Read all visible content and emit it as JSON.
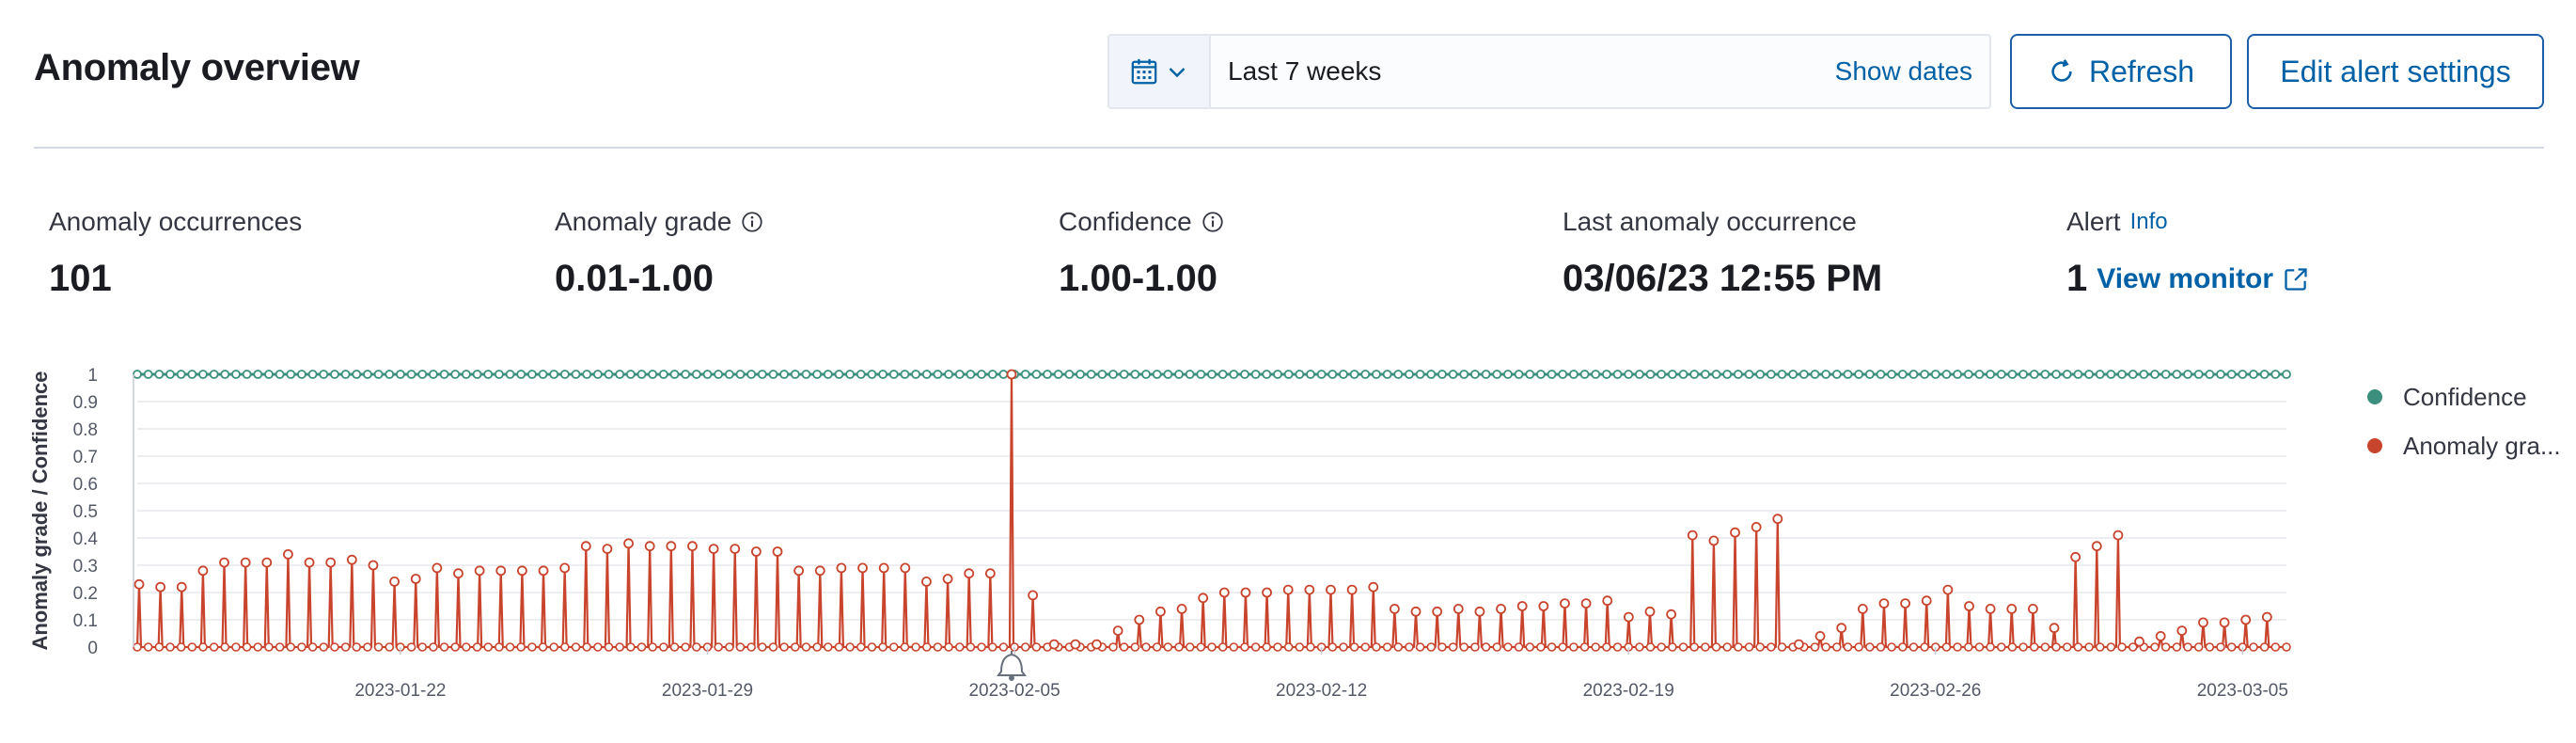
{
  "header": {
    "title": "Anomaly overview",
    "date_picker": {
      "range_label": "Last 7 weeks",
      "show_dates_label": "Show dates"
    },
    "refresh_label": "Refresh",
    "edit_alert_label": "Edit alert settings"
  },
  "stats": {
    "occurrences": {
      "label": "Anomaly occurrences",
      "value": "101"
    },
    "grade": {
      "label": "Anomaly grade",
      "value": "0.01-1.00"
    },
    "confidence": {
      "label": "Confidence",
      "value": "1.00-1.00"
    },
    "last": {
      "label": "Last anomaly occurrence",
      "value": "03/06/23 12:55 PM"
    },
    "alert": {
      "label": "Alert",
      "info_label": "Info",
      "value": "1",
      "link_label": "View monitor"
    }
  },
  "legend": [
    {
      "label": "Confidence",
      "color": "#3b8f7c"
    },
    {
      "label": "Anomaly gra...",
      "color": "#c9442d"
    }
  ],
  "colors": {
    "accent": "#0061a6",
    "confidence": "#3b8f7c",
    "anomaly": "#c9442d"
  },
  "chart_data": {
    "type": "line",
    "ylabel": "Anomaly grade / Confidence",
    "ylim": [
      0,
      1
    ],
    "yticks": [
      "0",
      "0.1",
      "0.2",
      "0.3",
      "0.4",
      "0.5",
      "0.6",
      "0.7",
      "0.8",
      "0.9",
      "1"
    ],
    "xlim": [
      "2023-01-16",
      "2023-03-06"
    ],
    "xticks": [
      "2023-01-22",
      "2023-01-29",
      "2023-02-05",
      "2023-02-12",
      "2023-02-19",
      "2023-02-26",
      "2023-03-05"
    ],
    "grid": true,
    "legend_position": "right",
    "series": [
      {
        "name": "Confidence",
        "color": "#3b8f7c",
        "constant_value": 1.0
      },
      {
        "name": "Anomaly grade",
        "color": "#c9442d",
        "peaks": [
          0.23,
          0.22,
          0.22,
          0.28,
          0.31,
          0.31,
          0.31,
          0.34,
          0.31,
          0.31,
          0.32,
          0.3,
          0.24,
          0.25,
          0.29,
          0.27,
          0.28,
          0.28,
          0.28,
          0.28,
          0.29,
          0.37,
          0.36,
          0.38,
          0.37,
          0.37,
          0.37,
          0.36,
          0.36,
          0.35,
          0.35,
          0.28,
          0.28,
          0.29,
          0.29,
          0.29,
          0.29,
          0.24,
          0.25,
          0.27,
          0.27,
          1.0,
          0.19,
          0.01,
          0.01,
          0.01,
          0.06,
          0.1,
          0.13,
          0.14,
          0.18,
          0.2,
          0.2,
          0.2,
          0.21,
          0.21,
          0.21,
          0.21,
          0.22,
          0.14,
          0.13,
          0.13,
          0.14,
          0.13,
          0.14,
          0.15,
          0.15,
          0.16,
          0.16,
          0.17,
          0.11,
          0.13,
          0.12,
          0.41,
          0.39,
          0.42,
          0.44,
          0.47,
          0.01,
          0.04,
          0.07,
          0.14,
          0.16,
          0.16,
          0.17,
          0.21,
          0.15,
          0.14,
          0.14,
          0.14,
          0.07,
          0.33,
          0.37,
          0.41,
          0.02,
          0.04,
          0.06,
          0.09,
          0.09,
          0.1,
          0.11
        ]
      }
    ],
    "annotation": {
      "type": "alert-bell",
      "date": "2023-02-07"
    }
  }
}
